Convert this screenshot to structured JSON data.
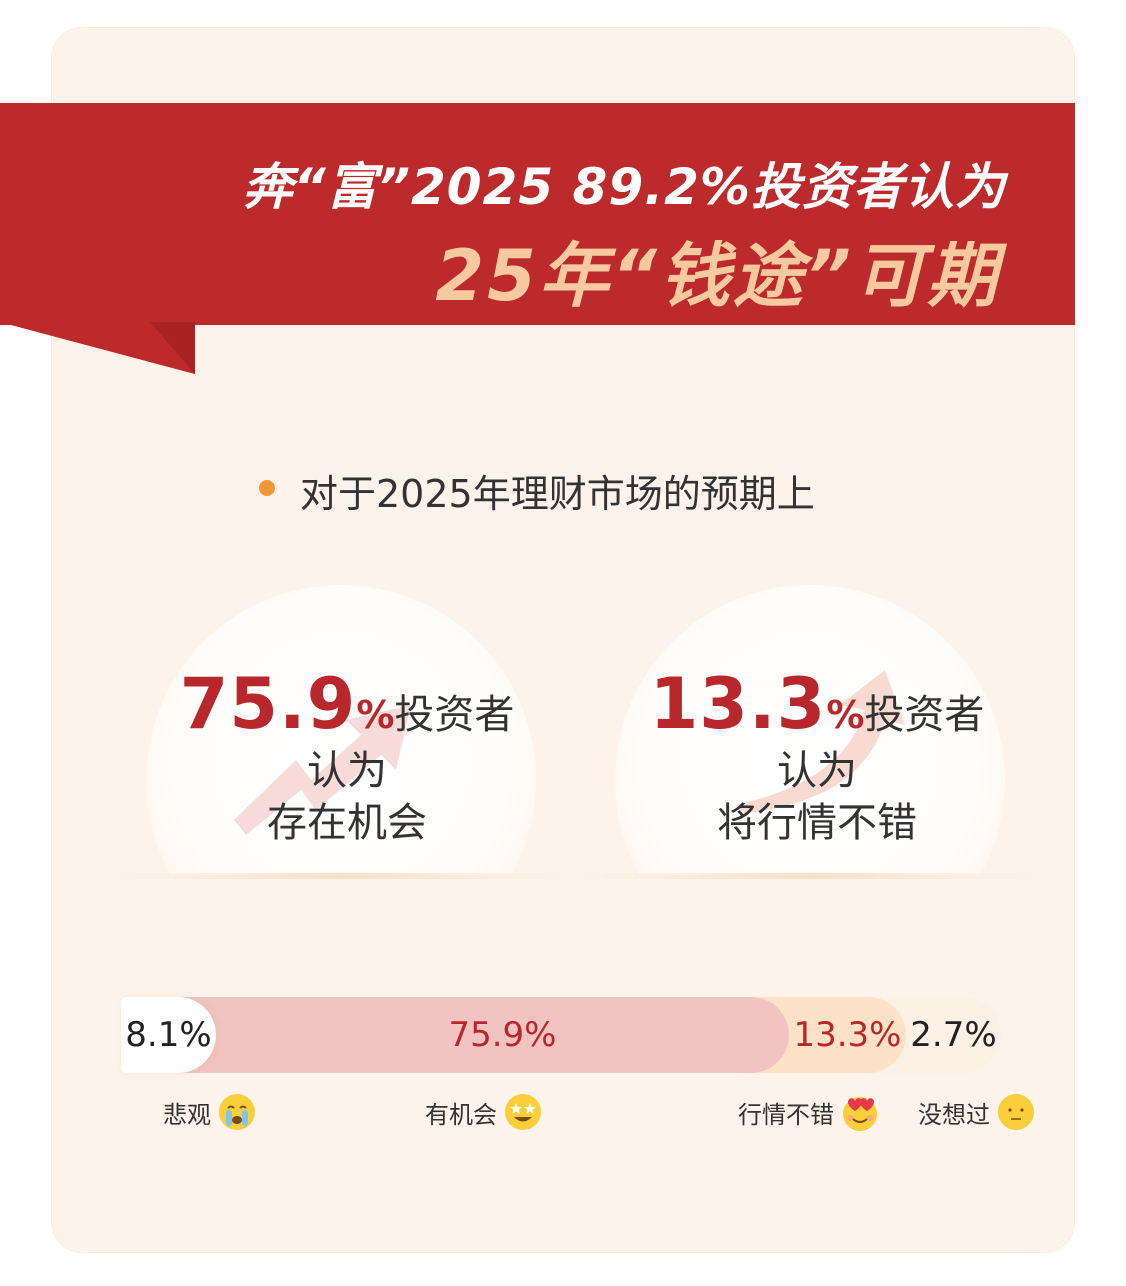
{
  "title": {
    "line1": "奔“富”2025  89.2%投资者认为",
    "line2": "25年“钱途”可期"
  },
  "subtitle": "对于2025年理财市场的预期上",
  "stats": [
    {
      "value": "75.9",
      "percent": "%",
      "who": "投资者",
      "line1": "认为",
      "line2": "存在机会"
    },
    {
      "value": "13.3",
      "percent": "%",
      "who": "投资者",
      "line1": "认为",
      "line2": "将行情不错"
    }
  ],
  "chart_data": {
    "type": "bar",
    "orientation": "horizontal-stacked",
    "categories": [
      "悲观",
      "有机会",
      "行情不错",
      "没想过"
    ],
    "values": [
      8.1,
      75.9,
      13.3,
      2.7
    ],
    "labels": [
      "8.1%",
      "75.9%",
      "13.3%",
      "2.7%"
    ],
    "colors": [
      "#ffffff",
      "#f1c4c1",
      "#fde2c8",
      "#fdf0e4"
    ],
    "label_colors": [
      "#222222",
      "#b8272b",
      "#b8272b",
      "#222222"
    ],
    "icons": [
      "crying-face-icon",
      "star-struck-face-icon",
      "heart-eyes-face-icon",
      "neutral-face-icon"
    ]
  }
}
